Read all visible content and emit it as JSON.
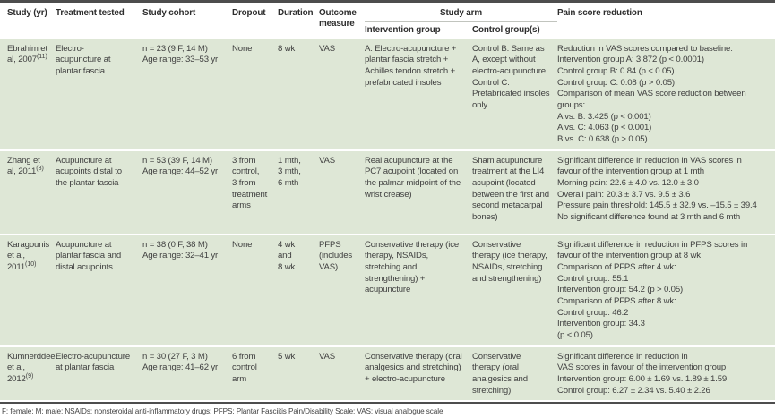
{
  "colors": {
    "row_bg": "#dee7d6",
    "header_text": "#2d2d2d",
    "body_text": "#3f3f3f",
    "top_border": "#4d4d4d",
    "arm_underline": "#c1c4be"
  },
  "table": {
    "headers": {
      "study": "Study (yr)",
      "treatment": "Treatment tested",
      "cohort": "Study cohort",
      "dropout": "Dropout",
      "duration": "Duration",
      "outcome": "Outcome measure",
      "study_arm": "Study arm",
      "intervention": "Intervention group",
      "control": "Control group(s)",
      "pain": "Pain score reduction"
    },
    "rows": [
      {
        "study": "Ebrahim et al, 2007",
        "citation": "(11)",
        "treatment": "Electro-\nacupuncture at plantar fascia",
        "cohort": "n = 23 (9 F, 14 M)\nAge range: 33–53 yr",
        "dropout": "None",
        "duration": "8 wk",
        "outcome": "VAS",
        "intervention": "A: Electro-acupuncture + plantar fascia stretch + Achilles tendon stretch + prefabricated insoles",
        "control": "Control B: Same as A, except without electro-acupuncture\nControl C: Prefabricated insoles only",
        "pain": "Reduction in VAS scores compared to baseline:\nIntervention group A: 3.872 (p < 0.0001)\nControl group B: 0.84 (p < 0.05)\nControl group C: 0.08 (p > 0.05)\nComparison of mean VAS score reduction between\ngroups:\nA vs. B: 3.425 (p < 0.001)\nA vs. C: 4.063 (p < 0.001)\nB vs. C: 0.638 (p > 0.05)"
      },
      {
        "study": "Zhang et al, 2011",
        "citation": "(8)",
        "treatment": "Acupuncture at acupoints distal to the plantar fascia",
        "cohort": "n = 53 (39 F, 14 M)\nAge range: 44–52 yr",
        "dropout": "3 from control,\n3 from treatment arms",
        "duration": "1 mth,\n3 mth,\n6 mth",
        "outcome": "VAS",
        "intervention": "Real acupuncture at the PC7 acupoint (located on the palmar midpoint of the wrist crease)",
        "control": "Sham acupuncture treatment at the LI4 acupoint (located between the first and second metacarpal bones)",
        "pain": "Significant difference in reduction in VAS scores in\nfavour of the intervention group at 1 mth\nMorning pain: 22.6 ± 4.0 vs. 12.0 ± 3.0\nOverall pain: 20.3 ± 3.7 vs. 9.5 ± 3.6\nPressure pain threshold: 145.5 ± 32.9 vs. –15.5 ± 39.4\nNo significant difference found at 3 mth and 6 mth"
      },
      {
        "study": "Karagounis et al, 2011",
        "citation": "(10)",
        "treatment": "Acupuncture at plantar fascia and distal acupoints",
        "cohort": "n = 38 (0 F, 38 M)\nAge range: 32–41 yr",
        "dropout": "None",
        "duration": "4 wk\nand\n8 wk",
        "outcome": "PFPS (includes VAS)",
        "intervention": "Conservative therapy (ice therapy, NSAIDs, stretching and strengthening) + acupuncture",
        "control": "Conservative therapy (ice therapy, NSAIDs, stretching and strengthening)",
        "pain": "Significant difference in reduction in PFPS scores in\nfavour of the intervention group at 8 wk\nComparison of PFPS after 4 wk:\nControl group: 55.1\nIntervention group: 54.2 (p > 0.05)\nComparison of PFPS after 8 wk:\nControl group: 46.2\nIntervention group: 34.3\n(p < 0.05)"
      },
      {
        "study": "Kumnerddee et al, 2012",
        "citation": "(9)",
        "treatment": "Electro-acupuncture at plantar fascia",
        "cohort": "n = 30 (27 F, 3 M)\nAge range: 41–62 yr",
        "dropout": "6 from control arm",
        "duration": "5 wk",
        "outcome": "VAS",
        "intervention": "Conservative therapy (oral analgesics and stretching)\n+ electro-acupuncture",
        "control": "Conservative therapy (oral analgesics and stretching)",
        "pain": "Significant difference in reduction in\nVAS scores in favour of the intervention group\nIntervention group: 6.00 ± 1.69 vs. 1.89 ± 1.59\nControl group: 6.27 ± 2.34 vs. 5.40 ± 2.26"
      }
    ]
  },
  "footnote": "F: female; M: male; NSAIDs: nonsteroidal anti-inflammatory drugs; PFPS: Plantar Fasciitis Pain/Disability Scale; VAS: visual analogue scale"
}
